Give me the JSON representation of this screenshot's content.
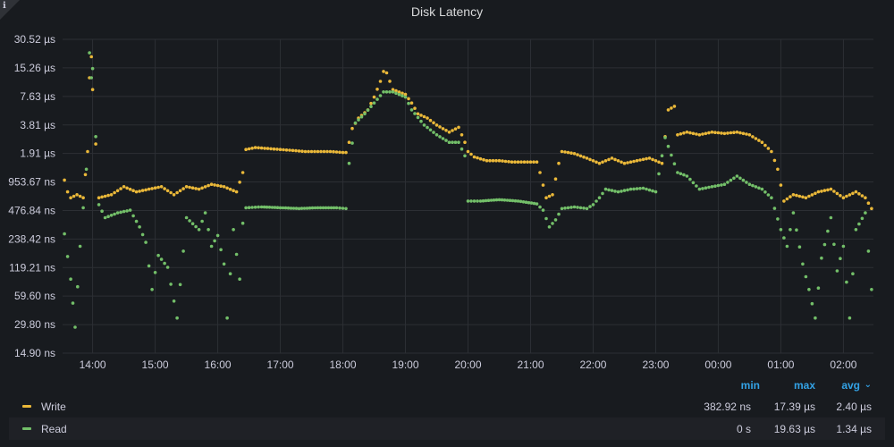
{
  "panel": {
    "info_icon": "info-icon",
    "title": "Disk Latency"
  },
  "chart_data": {
    "type": "scatter",
    "title": "Disk Latency",
    "y_scale": "log2",
    "y_unit": "seconds",
    "ylim": [
      1.49e-08,
      3.052e-05
    ],
    "y_ticks": [
      {
        "value": 1.49e-08,
        "label": "14.90 ns"
      },
      {
        "value": 2.98e-08,
        "label": "29.80 ns"
      },
      {
        "value": 5.96e-08,
        "label": "59.60 ns"
      },
      {
        "value": 1.1921e-07,
        "label": "119.21 ns"
      },
      {
        "value": 2.3842e-07,
        "label": "238.42 ns"
      },
      {
        "value": 4.7684e-07,
        "label": "476.84 ns"
      },
      {
        "value": 9.5367e-07,
        "label": "953.67 ns"
      },
      {
        "value": 1.91e-06,
        "label": "1.91 µs"
      },
      {
        "value": 3.81e-06,
        "label": "3.81 µs"
      },
      {
        "value": 7.63e-06,
        "label": "7.63 µs"
      },
      {
        "value": 1.526e-05,
        "label": "15.26 µs"
      },
      {
        "value": 3.052e-05,
        "label": "30.52 µs"
      }
    ],
    "x_ticks": [
      "14:00",
      "15:00",
      "16:00",
      "17:00",
      "18:00",
      "19:00",
      "20:00",
      "21:00",
      "22:00",
      "23:00",
      "00:00",
      "01:00",
      "02:00"
    ],
    "xlim_hours": [
      13.52,
      26.48
    ],
    "grid": true,
    "legend_position": "bottom",
    "series": [
      {
        "name": "Write",
        "color": "#eab839",
        "points": [
          [
            13.55,
            1e-06
          ],
          [
            13.6,
            7.5e-07
          ],
          [
            13.65,
            6.5e-07
          ],
          [
            13.75,
            7e-07
          ],
          [
            13.85,
            6.5e-07
          ],
          [
            13.92,
            2e-06
          ],
          [
            13.95,
            1.2e-05
          ],
          [
            13.98,
            2e-05
          ],
          [
            14.0,
            9e-06
          ],
          [
            14.05,
            2.4e-06
          ],
          [
            14.1,
            6.5e-07
          ],
          [
            14.3,
            7e-07
          ],
          [
            14.5,
            8.5e-07
          ],
          [
            14.7,
            7.5e-07
          ],
          [
            14.9,
            8e-07
          ],
          [
            15.1,
            8.5e-07
          ],
          [
            15.3,
            7e-07
          ],
          [
            15.5,
            8.5e-07
          ],
          [
            15.7,
            8e-07
          ],
          [
            15.9,
            9e-07
          ],
          [
            16.1,
            8.5e-07
          ],
          [
            16.3,
            7.5e-07
          ],
          [
            16.4,
            1.2e-06
          ],
          [
            16.45,
            2.1e-06
          ],
          [
            16.6,
            2.2e-06
          ],
          [
            16.8,
            2.15e-06
          ],
          [
            17.0,
            2.1e-06
          ],
          [
            17.2,
            2.05e-06
          ],
          [
            17.4,
            2e-06
          ],
          [
            17.6,
            2e-06
          ],
          [
            17.8,
            2e-06
          ],
          [
            18.0,
            1.95e-06
          ],
          [
            18.05,
            1.95e-06
          ],
          [
            18.1,
            2.5e-06
          ],
          [
            18.15,
            3.5e-06
          ],
          [
            18.25,
            4.5e-06
          ],
          [
            18.4,
            5.5e-06
          ],
          [
            18.5,
            7.5e-06
          ],
          [
            18.6,
            1.1e-05
          ],
          [
            18.65,
            1.4e-05
          ],
          [
            18.7,
            1.35e-05
          ],
          [
            18.8,
            9e-06
          ],
          [
            19.0,
            8e-06
          ],
          [
            19.1,
            6.5e-06
          ],
          [
            19.2,
            5e-06
          ],
          [
            19.35,
            4.5e-06
          ],
          [
            19.5,
            3.8e-06
          ],
          [
            19.7,
            3.2e-06
          ],
          [
            19.85,
            3.6e-06
          ],
          [
            19.95,
            2.5e-06
          ],
          [
            20.0,
            2e-06
          ],
          [
            20.1,
            1.75e-06
          ],
          [
            20.3,
            1.6e-06
          ],
          [
            20.5,
            1.6e-06
          ],
          [
            20.7,
            1.55e-06
          ],
          [
            20.9,
            1.55e-06
          ],
          [
            21.1,
            1.55e-06
          ],
          [
            21.15,
            1.2e-06
          ],
          [
            21.25,
            6.5e-07
          ],
          [
            21.35,
            7e-07
          ],
          [
            21.45,
            1.5e-06
          ],
          [
            21.5,
            2e-06
          ],
          [
            21.7,
            1.9e-06
          ],
          [
            21.9,
            1.7e-06
          ],
          [
            22.1,
            1.5e-06
          ],
          [
            22.3,
            1.7e-06
          ],
          [
            22.5,
            1.5e-06
          ],
          [
            22.7,
            1.6e-06
          ],
          [
            22.9,
            1.7e-06
          ],
          [
            23.1,
            1.5e-06
          ],
          [
            23.2,
            5.5e-06
          ],
          [
            23.3,
            6e-06
          ],
          [
            23.35,
            3e-06
          ],
          [
            23.5,
            3.2e-06
          ],
          [
            23.7,
            3e-06
          ],
          [
            23.9,
            3.2e-06
          ],
          [
            24.1,
            3.1e-06
          ],
          [
            24.3,
            3.2e-06
          ],
          [
            24.5,
            3e-06
          ],
          [
            24.7,
            2.5e-06
          ],
          [
            24.85,
            2e-06
          ],
          [
            24.95,
            1.3e-06
          ],
          [
            25.05,
            6e-07
          ],
          [
            25.2,
            7e-07
          ],
          [
            25.4,
            6.5e-07
          ],
          [
            25.6,
            7.5e-07
          ],
          [
            25.8,
            8e-07
          ],
          [
            26.0,
            6.5e-07
          ],
          [
            26.2,
            7.5e-07
          ],
          [
            26.35,
            6.5e-07
          ],
          [
            26.45,
            5e-07
          ]
        ]
      },
      {
        "name": "Read",
        "color": "#73bf69",
        "points": [
          [
            13.55,
            2.7e-07
          ],
          [
            13.65,
            9e-08
          ],
          [
            13.72,
            2.8e-08
          ],
          [
            13.8,
            2e-07
          ],
          [
            13.9,
            1.3e-06
          ],
          [
            13.95,
            2.2e-05
          ],
          [
            13.98,
            1.2e-05
          ],
          [
            14.0,
            1.5e-05
          ],
          [
            14.1,
            5.5e-07
          ],
          [
            14.2,
            4e-07
          ],
          [
            14.4,
            4.5e-07
          ],
          [
            14.6,
            4.8e-07
          ],
          [
            14.75,
            3.2e-07
          ],
          [
            14.85,
            2.2e-07
          ],
          [
            14.95,
            7e-08
          ],
          [
            15.05,
            1.6e-07
          ],
          [
            15.2,
            1.2e-07
          ],
          [
            15.35,
            3.5e-08
          ],
          [
            15.5,
            4e-07
          ],
          [
            15.7,
            3e-07
          ],
          [
            15.8,
            4.5e-07
          ],
          [
            15.9,
            2e-07
          ],
          [
            16.0,
            2.6e-07
          ],
          [
            16.1,
            1.3e-07
          ],
          [
            16.15,
            3.5e-08
          ],
          [
            16.25,
            3e-07
          ],
          [
            16.35,
            9e-08
          ],
          [
            16.4,
            3.5e-07
          ],
          [
            16.45,
            5.1e-07
          ],
          [
            16.7,
            5.2e-07
          ],
          [
            17.0,
            5.1e-07
          ],
          [
            17.3,
            5e-07
          ],
          [
            17.6,
            5.1e-07
          ],
          [
            17.9,
            5.1e-07
          ],
          [
            18.05,
            5e-07
          ],
          [
            18.1,
            1.5e-06
          ],
          [
            18.2,
            4e-06
          ],
          [
            18.35,
            5e-06
          ],
          [
            18.5,
            6.5e-06
          ],
          [
            18.65,
            8.5e-06
          ],
          [
            18.8,
            8.5e-06
          ],
          [
            19.0,
            7.5e-06
          ],
          [
            19.1,
            5.5e-06
          ],
          [
            19.3,
            3.8e-06
          ],
          [
            19.5,
            3e-06
          ],
          [
            19.7,
            2.5e-06
          ],
          [
            19.85,
            2.5e-06
          ],
          [
            19.95,
            1.8e-06
          ],
          [
            20.0,
            6e-07
          ],
          [
            20.2,
            6e-07
          ],
          [
            20.5,
            6.2e-07
          ],
          [
            20.8,
            6e-07
          ],
          [
            21.1,
            5.6e-07
          ],
          [
            21.2,
            4.8e-07
          ],
          [
            21.3,
            3.2e-07
          ],
          [
            21.4,
            3.8e-07
          ],
          [
            21.5,
            5e-07
          ],
          [
            21.7,
            5.2e-07
          ],
          [
            21.9,
            5e-07
          ],
          [
            22.0,
            5.5e-07
          ],
          [
            22.1,
            6.5e-07
          ],
          [
            22.2,
            8e-07
          ],
          [
            22.4,
            7.5e-07
          ],
          [
            22.6,
            8e-07
          ],
          [
            22.8,
            8.2e-07
          ],
          [
            23.0,
            7.5e-07
          ],
          [
            23.15,
            2.8e-06
          ],
          [
            23.35,
            1.2e-06
          ],
          [
            23.5,
            1.1e-06
          ],
          [
            23.7,
            8e-07
          ],
          [
            23.9,
            8.5e-07
          ],
          [
            24.1,
            9e-07
          ],
          [
            24.3,
            1.1e-06
          ],
          [
            24.5,
            9e-07
          ],
          [
            24.7,
            8e-07
          ],
          [
            24.85,
            6.5e-07
          ],
          [
            25.0,
            3e-07
          ],
          [
            25.1,
            2e-07
          ],
          [
            25.2,
            4.5e-07
          ],
          [
            25.35,
            1.3e-07
          ],
          [
            25.45,
            7e-08
          ],
          [
            25.55,
            3.5e-08
          ],
          [
            25.65,
            1.5e-07
          ],
          [
            25.8,
            4e-07
          ],
          [
            25.9,
            1.1e-07
          ],
          [
            26.0,
            2e-07
          ],
          [
            26.1,
            3.5e-08
          ],
          [
            26.2,
            3e-07
          ],
          [
            26.35,
            4.5e-07
          ],
          [
            26.45,
            7e-08
          ]
        ]
      }
    ]
  },
  "legend": {
    "headers": {
      "min": "min",
      "max": "max",
      "avg": "avg"
    },
    "sort_icon": "chevron-down-icon",
    "rows": [
      {
        "name": "Write",
        "color": "#eab839",
        "min": "382.92 ns",
        "max": "17.39 µs",
        "avg": "2.40 µs"
      },
      {
        "name": "Read",
        "color": "#73bf69",
        "min": "0 s",
        "max": "19.63 µs",
        "avg": "1.34 µs"
      }
    ]
  }
}
